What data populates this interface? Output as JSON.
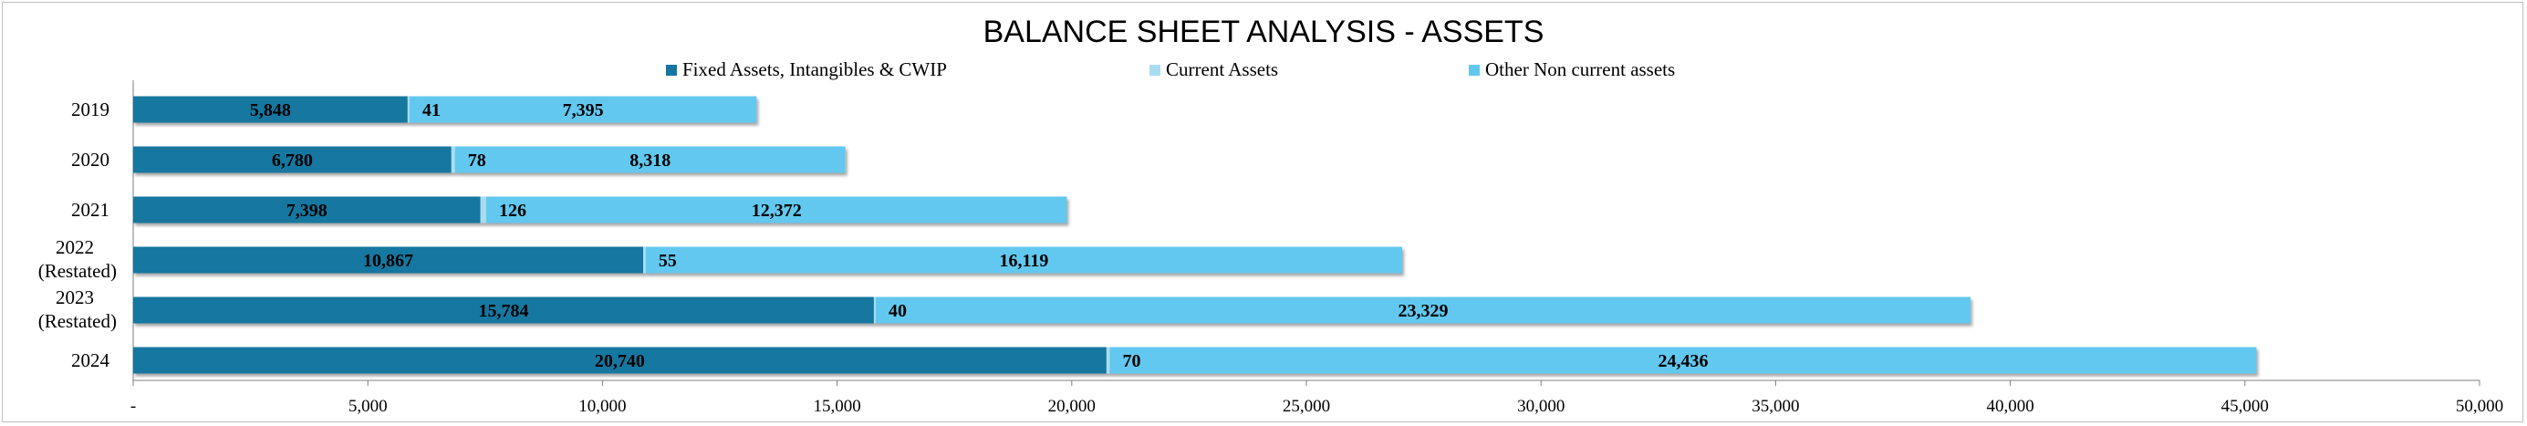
{
  "chart_data": {
    "type": "bar",
    "orientation": "horizontal",
    "stacked": true,
    "title": "BALANCE SHEET ANALYSIS - ASSETS",
    "categories": [
      [
        "2019"
      ],
      [
        "2020"
      ],
      [
        "2021"
      ],
      [
        "2022",
        "(Restated)"
      ],
      [
        "2023",
        "(Restated)"
      ],
      [
        "2024"
      ]
    ],
    "series": [
      {
        "name": "Fixed Assets, Intangibles & CWIP",
        "color": "#1577a0",
        "values": [
          5848,
          6780,
          7398,
          10867,
          15784,
          20740
        ],
        "labels": [
          "5,848",
          "6,780",
          "7,398",
          "10,867",
          "15,784",
          "20,740"
        ]
      },
      {
        "name": "Current Assets",
        "color": "#a9dcf3",
        "values": [
          41,
          78,
          126,
          55,
          40,
          70
        ],
        "labels": [
          "41",
          "78",
          "126",
          "55",
          "40",
          "70"
        ]
      },
      {
        "name": "Other Non current assets",
        "color": "#63c8ef",
        "values": [
          7395,
          8318,
          12372,
          16119,
          23329,
          24436
        ],
        "labels": [
          "7,395",
          "8,318",
          "12,372",
          "16,119",
          "23,329",
          "24,436"
        ]
      }
    ],
    "xlim": [
      0,
      50000
    ],
    "xticks": [
      0,
      5000,
      10000,
      15000,
      20000,
      25000,
      30000,
      35000,
      40000,
      45000,
      50000
    ],
    "xtick_labels": [
      "-",
      "5,000",
      "10,000",
      "15,000",
      "20,000",
      "25,000",
      "30,000",
      "35,000",
      "40,000",
      "45,000",
      "50,000"
    ],
    "legend_position": "top",
    "grid": false
  }
}
